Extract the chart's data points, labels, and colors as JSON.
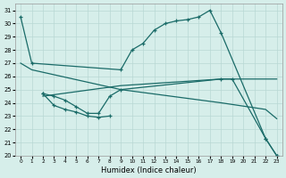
{
  "xlabel": "Humidex (Indice chaleur)",
  "xlim": [
    -0.5,
    23.5
  ],
  "ylim": [
    20,
    31.5
  ],
  "xticks": [
    0,
    1,
    2,
    3,
    4,
    5,
    6,
    7,
    8,
    9,
    10,
    11,
    12,
    13,
    14,
    15,
    16,
    17,
    18,
    19,
    20,
    21,
    22,
    23
  ],
  "yticks": [
    20,
    21,
    22,
    23,
    24,
    25,
    26,
    27,
    28,
    29,
    30,
    31
  ],
  "bg_color": "#d6eeea",
  "grid_color": "#b8d8d4",
  "line_color": "#1a6b68",
  "line1_x": [
    0,
    1,
    9,
    10,
    11,
    12,
    13,
    14,
    15,
    16,
    17,
    18,
    22,
    23
  ],
  "line1_y": [
    30.5,
    27.0,
    26.5,
    28.0,
    28.5,
    29.5,
    30.0,
    30.2,
    30.3,
    30.5,
    31.0,
    29.3,
    21.3,
    20.0
  ],
  "line2_x": [
    2,
    3,
    4,
    5,
    6,
    7,
    8,
    9,
    18,
    19,
    22,
    23
  ],
  "line2_y": [
    24.7,
    24.5,
    24.2,
    23.7,
    23.2,
    23.2,
    24.5,
    25.0,
    25.8,
    25.8,
    21.3,
    20.0
  ],
  "line2b_x": [
    2,
    3,
    4,
    5,
    6,
    7,
    8
  ],
  "line2b_y": [
    24.7,
    23.8,
    23.5,
    23.3,
    23.0,
    22.9,
    23.0
  ],
  "line3_x": [
    2,
    9,
    18,
    22,
    23
  ],
  "line3_y": [
    24.5,
    25.3,
    25.8,
    25.8,
    25.8
  ],
  "line4_x": [
    0,
    1,
    9,
    18,
    22,
    23
  ],
  "line4_y": [
    27.0,
    26.5,
    25.0,
    24.0,
    23.5,
    22.8
  ]
}
